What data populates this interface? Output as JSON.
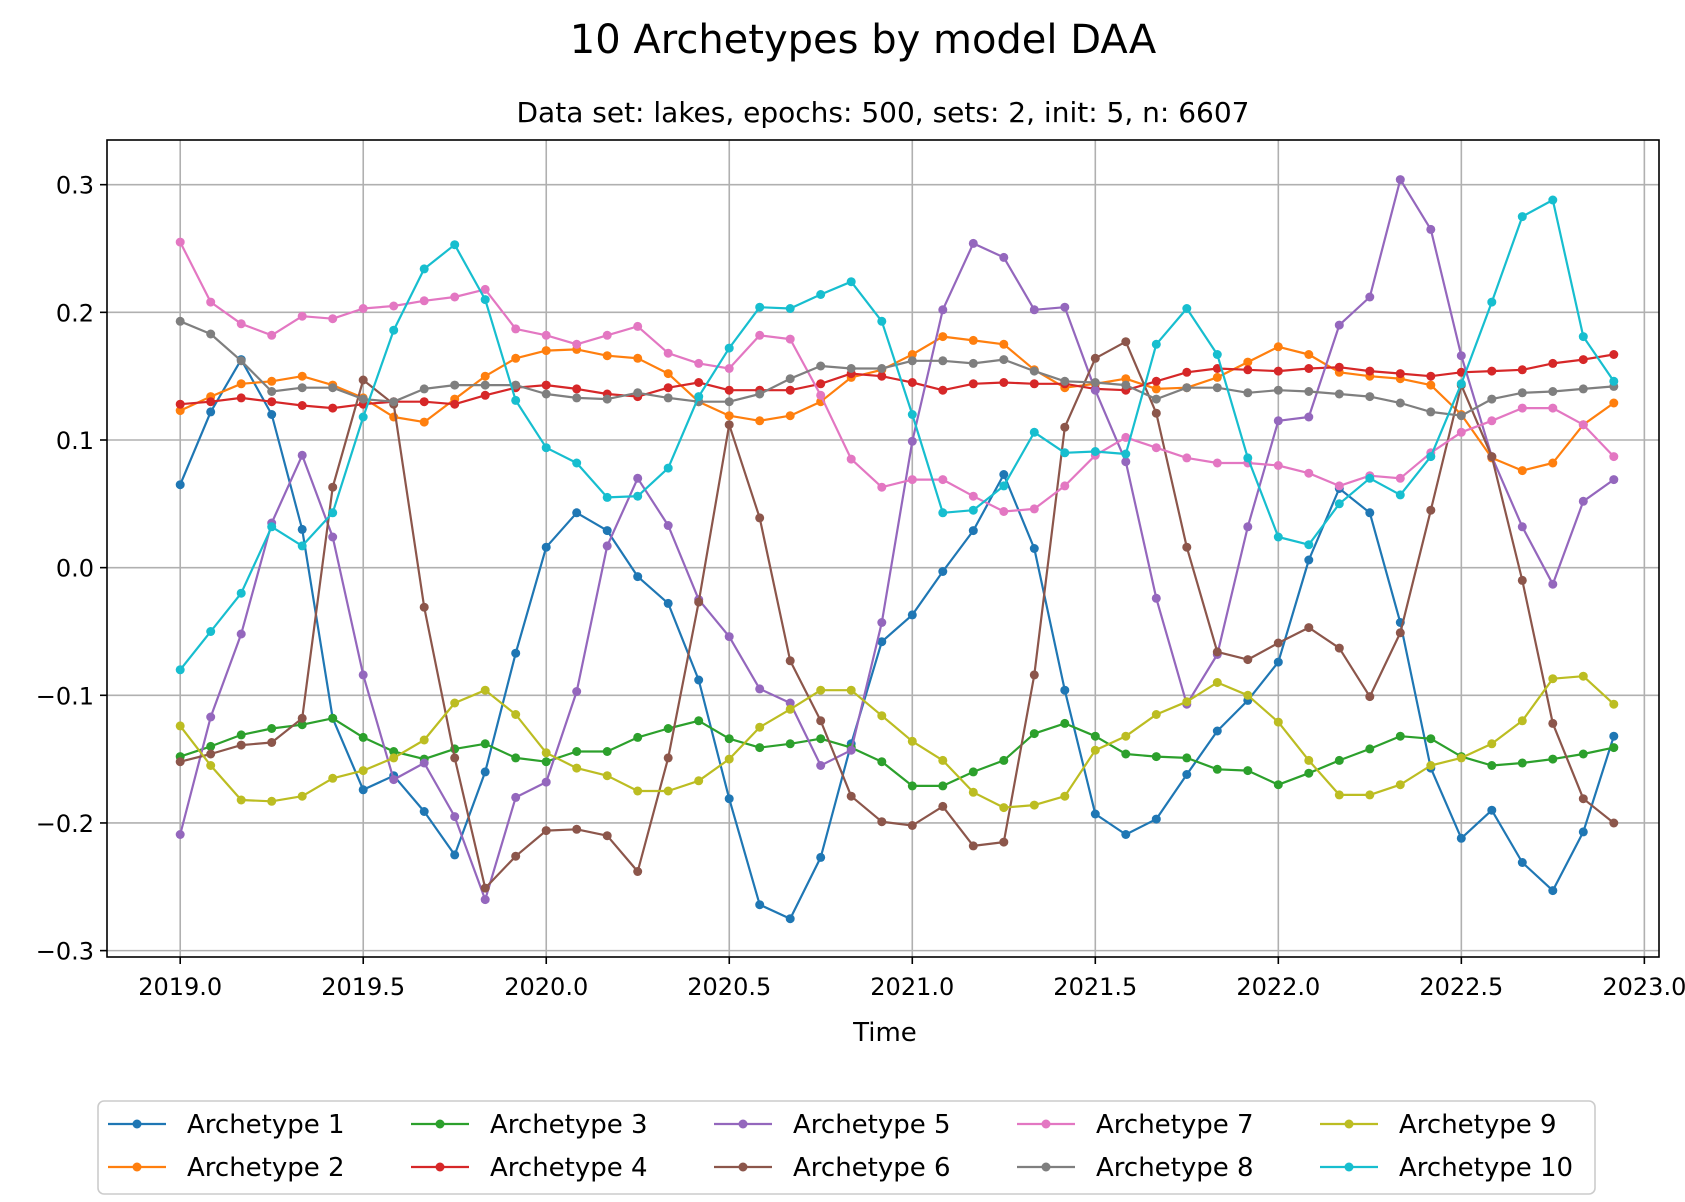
{
  "chart_data": {
    "type": "line",
    "title": "10 Archetypes by model DAA",
    "subtitle": "Data set: lakes, epochs: 500, sets: 2, init: 5, n: 6607",
    "xlabel": "Time",
    "ylabel": "",
    "xlim": [
      2018.8,
      2023.04
    ],
    "ylim": [
      -0.305,
      0.335
    ],
    "xticks": [
      2019.0,
      2019.5,
      2020.0,
      2020.5,
      2021.0,
      2021.5,
      2022.0,
      2022.5,
      2023.0
    ],
    "xtick_labels": [
      "2019.0",
      "2019.5",
      "2020.0",
      "2020.5",
      "2021.0",
      "2021.5",
      "2022.0",
      "2022.5",
      "2023.0"
    ],
    "yticks": [
      -0.3,
      -0.2,
      -0.1,
      0.0,
      0.1,
      0.2,
      0.3
    ],
    "ytick_labels": [
      "−0.3",
      "−0.2",
      "−0.1",
      "0.0",
      "0.1",
      "0.2",
      "0.3"
    ],
    "grid": true,
    "legend_position": "bottom, 5 columns",
    "x_start": 2019.0,
    "x_step": 0.08333,
    "series": [
      {
        "name": "Archetype 1",
        "color": "#1f77b4",
        "values": [
          0.065,
          0.122,
          0.163,
          0.12,
          0.03,
          -0.118,
          -0.174,
          -0.163,
          -0.191,
          -0.225,
          -0.16,
          -0.067,
          0.016,
          0.043,
          0.029,
          -0.007,
          -0.028,
          -0.088,
          -0.181,
          -0.264,
          -0.275,
          -0.227,
          -0.138,
          -0.058,
          -0.037,
          -0.003,
          0.029,
          0.073,
          0.015,
          -0.096,
          -0.193,
          -0.209,
          -0.197,
          -0.162,
          -0.128,
          -0.104,
          -0.074,
          0.006,
          0.062,
          0.043,
          -0.043,
          -0.157,
          -0.212,
          -0.19,
          -0.231,
          -0.253,
          -0.207,
          -0.132
        ]
      },
      {
        "name": "Archetype 2",
        "color": "#ff7f0e",
        "values": [
          0.123,
          0.134,
          0.144,
          0.146,
          0.15,
          0.143,
          0.133,
          0.118,
          0.114,
          0.132,
          0.15,
          0.164,
          0.17,
          0.171,
          0.166,
          0.164,
          0.152,
          0.13,
          0.119,
          0.115,
          0.119,
          0.13,
          0.149,
          0.155,
          0.167,
          0.181,
          0.178,
          0.175,
          0.155,
          0.141,
          0.144,
          0.148,
          0.14,
          0.141,
          0.149,
          0.161,
          0.173,
          0.167,
          0.153,
          0.15,
          0.148,
          0.143,
          0.12,
          0.086,
          0.076,
          0.082,
          0.112,
          0.129
        ]
      },
      {
        "name": "Archetype 3",
        "color": "#2ca02c",
        "values": [
          -0.148,
          -0.14,
          -0.131,
          -0.126,
          -0.123,
          -0.118,
          -0.133,
          -0.144,
          -0.15,
          -0.142,
          -0.138,
          -0.149,
          -0.152,
          -0.144,
          -0.144,
          -0.133,
          -0.126,
          -0.12,
          -0.134,
          -0.141,
          -0.138,
          -0.134,
          -0.141,
          -0.152,
          -0.171,
          -0.171,
          -0.16,
          -0.151,
          -0.13,
          -0.122,
          -0.132,
          -0.146,
          -0.148,
          -0.149,
          -0.158,
          -0.159,
          -0.17,
          -0.161,
          -0.151,
          -0.142,
          -0.132,
          -0.134,
          -0.148,
          -0.155,
          -0.153,
          -0.15,
          -0.146,
          -0.141
        ]
      },
      {
        "name": "Archetype 4",
        "color": "#d62728",
        "values": [
          0.128,
          0.13,
          0.133,
          0.13,
          0.127,
          0.125,
          0.128,
          0.13,
          0.13,
          0.128,
          0.135,
          0.141,
          0.143,
          0.14,
          0.136,
          0.134,
          0.141,
          0.145,
          0.139,
          0.139,
          0.139,
          0.144,
          0.152,
          0.15,
          0.145,
          0.139,
          0.144,
          0.145,
          0.144,
          0.144,
          0.14,
          0.139,
          0.146,
          0.153,
          0.156,
          0.155,
          0.154,
          0.156,
          0.157,
          0.154,
          0.152,
          0.15,
          0.153,
          0.154,
          0.155,
          0.16,
          0.163,
          0.167
        ]
      },
      {
        "name": "Archetype 5",
        "color": "#9467bd",
        "values": [
          -0.209,
          -0.117,
          -0.052,
          0.035,
          0.088,
          0.024,
          -0.084,
          -0.166,
          -0.153,
          -0.195,
          -0.26,
          -0.18,
          -0.168,
          -0.097,
          0.017,
          0.07,
          0.033,
          -0.025,
          -0.054,
          -0.095,
          -0.106,
          -0.155,
          -0.143,
          -0.043,
          0.099,
          0.202,
          0.254,
          0.243,
          0.202,
          0.204,
          0.139,
          0.083,
          -0.024,
          -0.107,
          -0.068,
          0.032,
          0.115,
          0.118,
          0.19,
          0.212,
          0.304,
          0.265,
          0.166,
          0.087,
          0.032,
          -0.013,
          0.052,
          0.069
        ]
      },
      {
        "name": "Archetype 6",
        "color": "#8c564b",
        "values": [
          -0.152,
          -0.146,
          -0.139,
          -0.137,
          -0.118,
          0.063,
          0.147,
          0.128,
          -0.031,
          -0.149,
          -0.251,
          -0.226,
          -0.206,
          -0.205,
          -0.21,
          -0.238,
          -0.149,
          -0.027,
          0.112,
          0.039,
          -0.073,
          -0.12,
          -0.179,
          -0.199,
          -0.202,
          -0.187,
          -0.218,
          -0.215,
          -0.084,
          0.11,
          0.164,
          0.177,
          0.121,
          0.016,
          -0.066,
          -0.072,
          -0.059,
          -0.047,
          -0.063,
          -0.101,
          -0.051,
          0.045,
          0.143,
          0.087,
          -0.01,
          -0.122,
          -0.181,
          -0.2
        ]
      },
      {
        "name": "Archetype 7",
        "color": "#e377c2",
        "values": [
          0.255,
          0.208,
          0.191,
          0.182,
          0.197,
          0.195,
          0.203,
          0.205,
          0.209,
          0.212,
          0.218,
          0.187,
          0.182,
          0.175,
          0.182,
          0.189,
          0.168,
          0.16,
          0.156,
          0.182,
          0.179,
          0.135,
          0.085,
          0.063,
          0.069,
          0.069,
          0.056,
          0.044,
          0.046,
          0.064,
          0.088,
          0.102,
          0.094,
          0.086,
          0.082,
          0.082,
          0.08,
          0.074,
          0.064,
          0.072,
          0.07,
          0.09,
          0.106,
          0.115,
          0.125,
          0.125,
          0.112,
          0.087
        ]
      },
      {
        "name": "Archetype 8",
        "color": "#7f7f7f",
        "values": [
          0.193,
          0.183,
          0.162,
          0.138,
          0.141,
          0.141,
          0.132,
          0.13,
          0.14,
          0.143,
          0.143,
          0.143,
          0.136,
          0.133,
          0.132,
          0.137,
          0.133,
          0.13,
          0.13,
          0.136,
          0.148,
          0.158,
          0.156,
          0.156,
          0.162,
          0.162,
          0.16,
          0.163,
          0.154,
          0.146,
          0.145,
          0.143,
          0.132,
          0.141,
          0.141,
          0.137,
          0.139,
          0.138,
          0.136,
          0.134,
          0.129,
          0.122,
          0.119,
          0.132,
          0.137,
          0.138,
          0.14,
          0.142
        ]
      },
      {
        "name": "Archetype 9",
        "color": "#bcbd22",
        "values": [
          -0.124,
          -0.155,
          -0.182,
          -0.183,
          -0.179,
          -0.165,
          -0.159,
          -0.149,
          -0.135,
          -0.106,
          -0.096,
          -0.115,
          -0.145,
          -0.157,
          -0.163,
          -0.175,
          -0.175,
          -0.167,
          -0.15,
          -0.125,
          -0.111,
          -0.096,
          -0.096,
          -0.116,
          -0.136,
          -0.151,
          -0.176,
          -0.188,
          -0.186,
          -0.179,
          -0.143,
          -0.132,
          -0.115,
          -0.105,
          -0.09,
          -0.1,
          -0.121,
          -0.151,
          -0.178,
          -0.178,
          -0.17,
          -0.155,
          -0.149,
          -0.138,
          -0.12,
          -0.087,
          -0.085,
          -0.107
        ]
      },
      {
        "name": "Archetype 10",
        "color": "#17becf",
        "values": [
          -0.08,
          -0.05,
          -0.02,
          0.032,
          0.017,
          0.043,
          0.118,
          0.186,
          0.234,
          0.253,
          0.21,
          0.131,
          0.094,
          0.082,
          0.055,
          0.056,
          0.078,
          0.134,
          0.172,
          0.204,
          0.203,
          0.214,
          0.224,
          0.193,
          0.12,
          0.043,
          0.045,
          0.064,
          0.106,
          0.09,
          0.091,
          0.089,
          0.175,
          0.203,
          0.167,
          0.086,
          0.024,
          0.018,
          0.05,
          0.07,
          0.057,
          0.087,
          0.144,
          0.208,
          0.275,
          0.288,
          0.181,
          0.146
        ]
      }
    ]
  }
}
